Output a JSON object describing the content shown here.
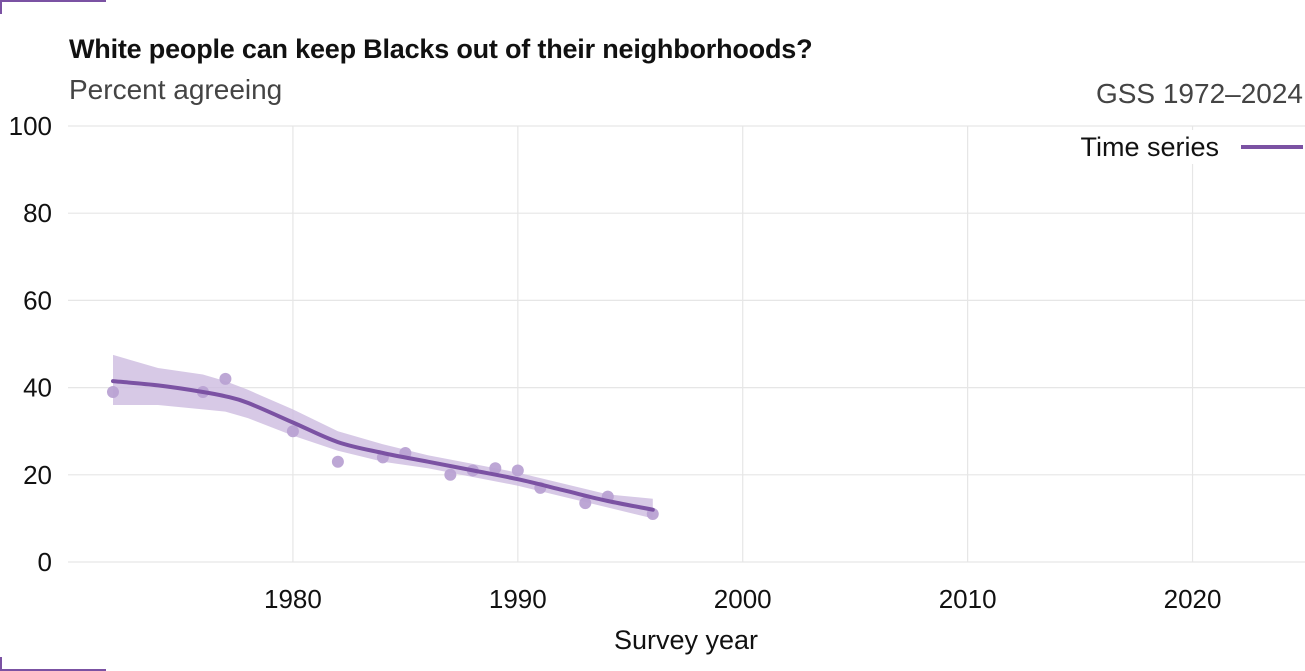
{
  "title": "White people can keep Blacks out of their neighborhoods?",
  "subtitle": "Percent agreeing",
  "caption": "GSS 1972–2024",
  "legend": {
    "label": "Time series",
    "color": "#7b52a3"
  },
  "chart_data": {
    "type": "line",
    "xlabel": "Survey year",
    "ylabel": "",
    "xlim": [
      1970,
      2025
    ],
    "ylim": [
      0,
      100
    ],
    "x_ticks": [
      1980,
      1990,
      2000,
      2010,
      2020
    ],
    "y_ticks": [
      0,
      20,
      40,
      60,
      80,
      100
    ],
    "grid": true,
    "legend_position": "top-right",
    "points": [
      {
        "x": 1972,
        "y": 39
      },
      {
        "x": 1976,
        "y": 39
      },
      {
        "x": 1977,
        "y": 42
      },
      {
        "x": 1980,
        "y": 30
      },
      {
        "x": 1982,
        "y": 23
      },
      {
        "x": 1984,
        "y": 24
      },
      {
        "x": 1985,
        "y": 25
      },
      {
        "x": 1987,
        "y": 20
      },
      {
        "x": 1988,
        "y": 21
      },
      {
        "x": 1989,
        "y": 21.5
      },
      {
        "x": 1990,
        "y": 21
      },
      {
        "x": 1991,
        "y": 17
      },
      {
        "x": 1993,
        "y": 13.5
      },
      {
        "x": 1994,
        "y": 15
      },
      {
        "x": 1996,
        "y": 11
      }
    ],
    "trend": {
      "name": "Time series",
      "x": [
        1972,
        1974,
        1976,
        1977,
        1978,
        1980,
        1982,
        1984,
        1986,
        1988,
        1990,
        1992,
        1994,
        1996
      ],
      "y": [
        41.5,
        40.5,
        39,
        38,
        36.5,
        32,
        27.5,
        25,
        23,
        21,
        19,
        16.5,
        14,
        12
      ],
      "lower": [
        36,
        36,
        35,
        34.5,
        33,
        29,
        25.5,
        23,
        21.5,
        19.5,
        17.5,
        15,
        12.5,
        10
      ],
      "upper": [
        47.5,
        44.5,
        43,
        41.5,
        39.5,
        35,
        30,
        27,
        24.5,
        22.5,
        20.5,
        18,
        15.5,
        14.5
      ]
    },
    "colors": {
      "line": "#7b52a3",
      "band": "#cdbbe0",
      "points": "#b9a2d3",
      "grid": "#e6e6e6"
    }
  }
}
